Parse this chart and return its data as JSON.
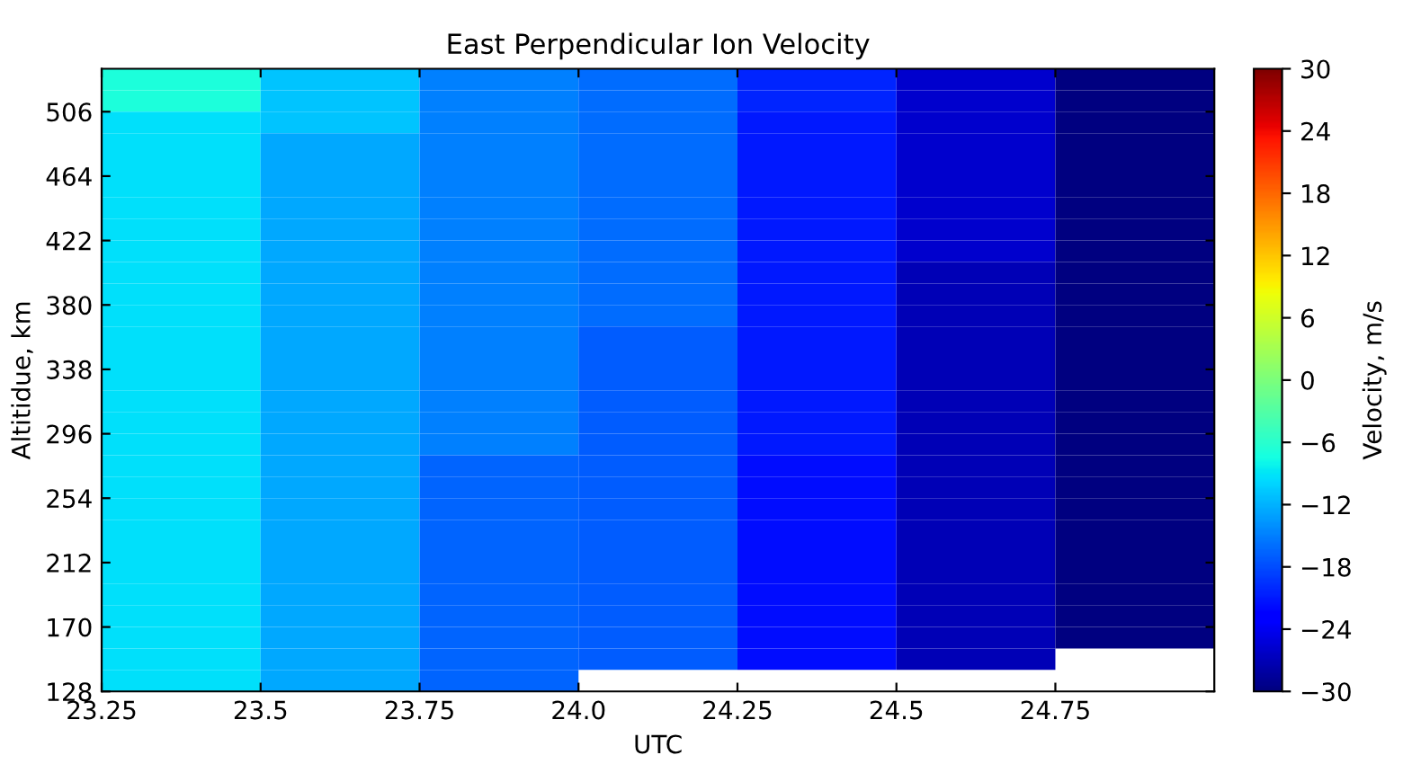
{
  "chart_data": {
    "type": "heatmap",
    "title": "East Perpendicular Ion Velocity",
    "xlabel": "UTC",
    "ylabel": "Altitidue, km",
    "clabel": "Velocity, m/s",
    "cells": [
      [
        -7,
        -11,
        -15,
        -16,
        -20.3,
        -26,
        -30
      ],
      [
        -7,
        -11,
        -15,
        -16,
        -20.3,
        -26,
        -30
      ],
      [
        -9.3,
        -11,
        -15,
        -16,
        -21,
        -26,
        -30
      ],
      [
        -9.3,
        -12.5,
        -15,
        -16,
        -21,
        -26,
        -30
      ],
      [
        -9.3,
        -12.5,
        -15,
        -16,
        -21,
        -26,
        -30
      ],
      [
        -9.3,
        -12.5,
        -15,
        -16,
        -21,
        -26,
        -30
      ],
      [
        -9.3,
        -12.5,
        -15,
        -16,
        -21,
        -26,
        -30
      ],
      [
        -9.3,
        -12.5,
        -15,
        -16,
        -21,
        -26,
        -30
      ],
      [
        -9.3,
        -12.5,
        -15,
        -16,
        -21,
        -26,
        -30
      ],
      [
        -9.3,
        -12.5,
        -15,
        -16,
        -21,
        -27,
        -30
      ],
      [
        -9.3,
        -12.5,
        -15,
        -16,
        -21,
        -27,
        -30
      ],
      [
        -9.3,
        -12.5,
        -15,
        -16,
        -21,
        -27,
        -30
      ],
      [
        -9.3,
        -12.5,
        -15,
        -17,
        -21,
        -27,
        -30
      ],
      [
        -9.3,
        -12.5,
        -15,
        -17,
        -21,
        -27,
        -30
      ],
      [
        -9.3,
        -12.5,
        -15,
        -17,
        -21,
        -27,
        -30
      ],
      [
        -9.3,
        -12.5,
        -15,
        -17,
        -21,
        -27,
        -30
      ],
      [
        -9.3,
        -12.5,
        -15,
        -17,
        -21,
        -27,
        -30
      ],
      [
        -9.3,
        -12.5,
        -15,
        -17,
        -21,
        -27,
        -30
      ],
      [
        -9.3,
        -12.5,
        -16.5,
        -17,
        -21.6,
        -27,
        -30
      ],
      [
        -9.3,
        -12.5,
        -16.5,
        -17,
        -21.6,
        -27,
        -30
      ],
      [
        -9.3,
        -12.5,
        -16.5,
        -17,
        -21.6,
        -27,
        -30
      ],
      [
        -9.3,
        -12.5,
        -16.5,
        -17,
        -21.6,
        -27,
        -30
      ],
      [
        -9.3,
        -12.5,
        -16.5,
        -17,
        -21.6,
        -27,
        -30
      ],
      [
        -9.3,
        -12.5,
        -16.5,
        -17,
        -21.6,
        -27,
        -30
      ],
      [
        -9.3,
        -12.5,
        -16.5,
        -17,
        -21.6,
        -27,
        -30
      ],
      [
        -9.3,
        -12.5,
        -16.5,
        -17,
        -21.6,
        -27,
        -30
      ],
      [
        -9.3,
        -12.5,
        -16.5,
        -17,
        -21.6,
        -27,
        -30
      ],
      [
        -9.3,
        -12.5,
        -16.5,
        -17,
        -21.6,
        -27,
        null
      ],
      [
        -9.3,
        -12.5,
        -16.5,
        null,
        null,
        null,
        null
      ]
    ],
    "xlim": [
      23.25,
      25.0
    ],
    "xticks": [
      23.25,
      23.5,
      23.75,
      {
        "value": 24.0,
        "label": "24.0"
      },
      24.25,
      24.5,
      24.75
    ],
    "ylim": [
      128,
      534
    ],
    "yticks": [
      128,
      170,
      212,
      254,
      296,
      338,
      380,
      422,
      464,
      506
    ],
    "clim": [
      -30,
      30
    ],
    "cticks": [
      -30,
      -24,
      -18,
      -12,
      -6,
      0,
      6,
      12,
      18,
      24,
      30
    ]
  }
}
